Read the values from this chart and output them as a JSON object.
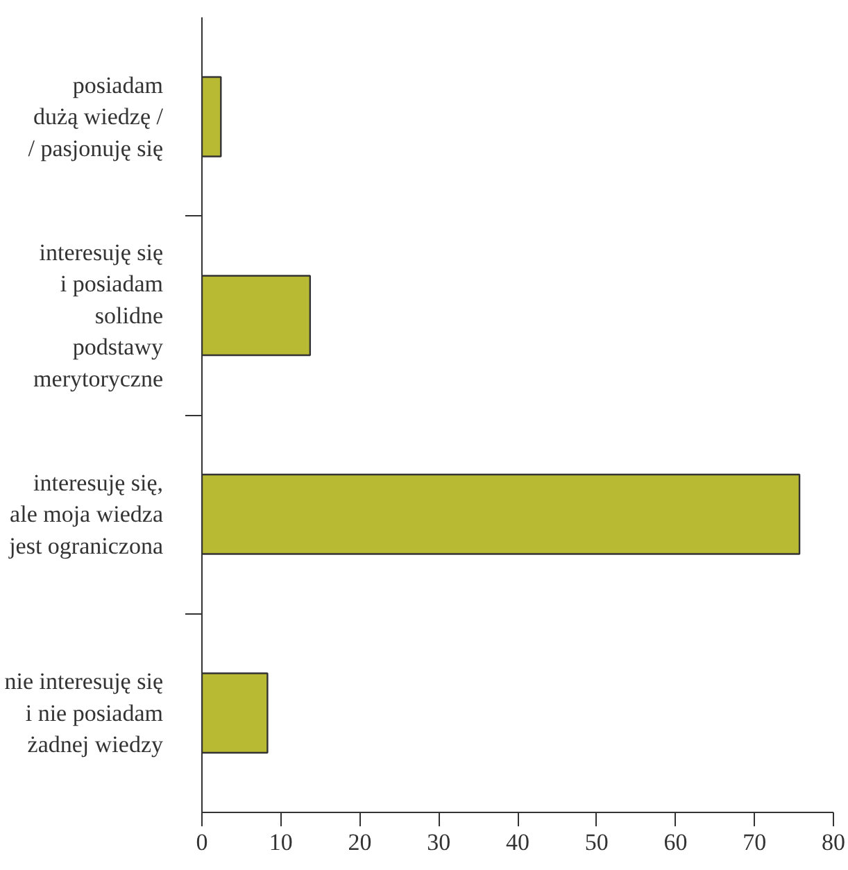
{
  "chart_data": {
    "type": "bar",
    "orientation": "horizontal",
    "categories": [
      "posiadam\ndużą wiedzę /\n/ pasjonuję się",
      "interesuję się\ni posiadam\nsolidne\npodstawy\nmerytoryczne",
      "interesuję się,\nale moja wiedza\njest ograniczona",
      "nie interesuję się\ni nie posiadam\nżadnej wiedzy"
    ],
    "values": [
      2.4,
      13.7,
      75.7,
      8.3
    ],
    "color": "#b8ba34",
    "xlim": [
      0,
      80
    ],
    "xticks": [
      0,
      10,
      20,
      30,
      40,
      50,
      60,
      70,
      80
    ],
    "grid": false
  }
}
